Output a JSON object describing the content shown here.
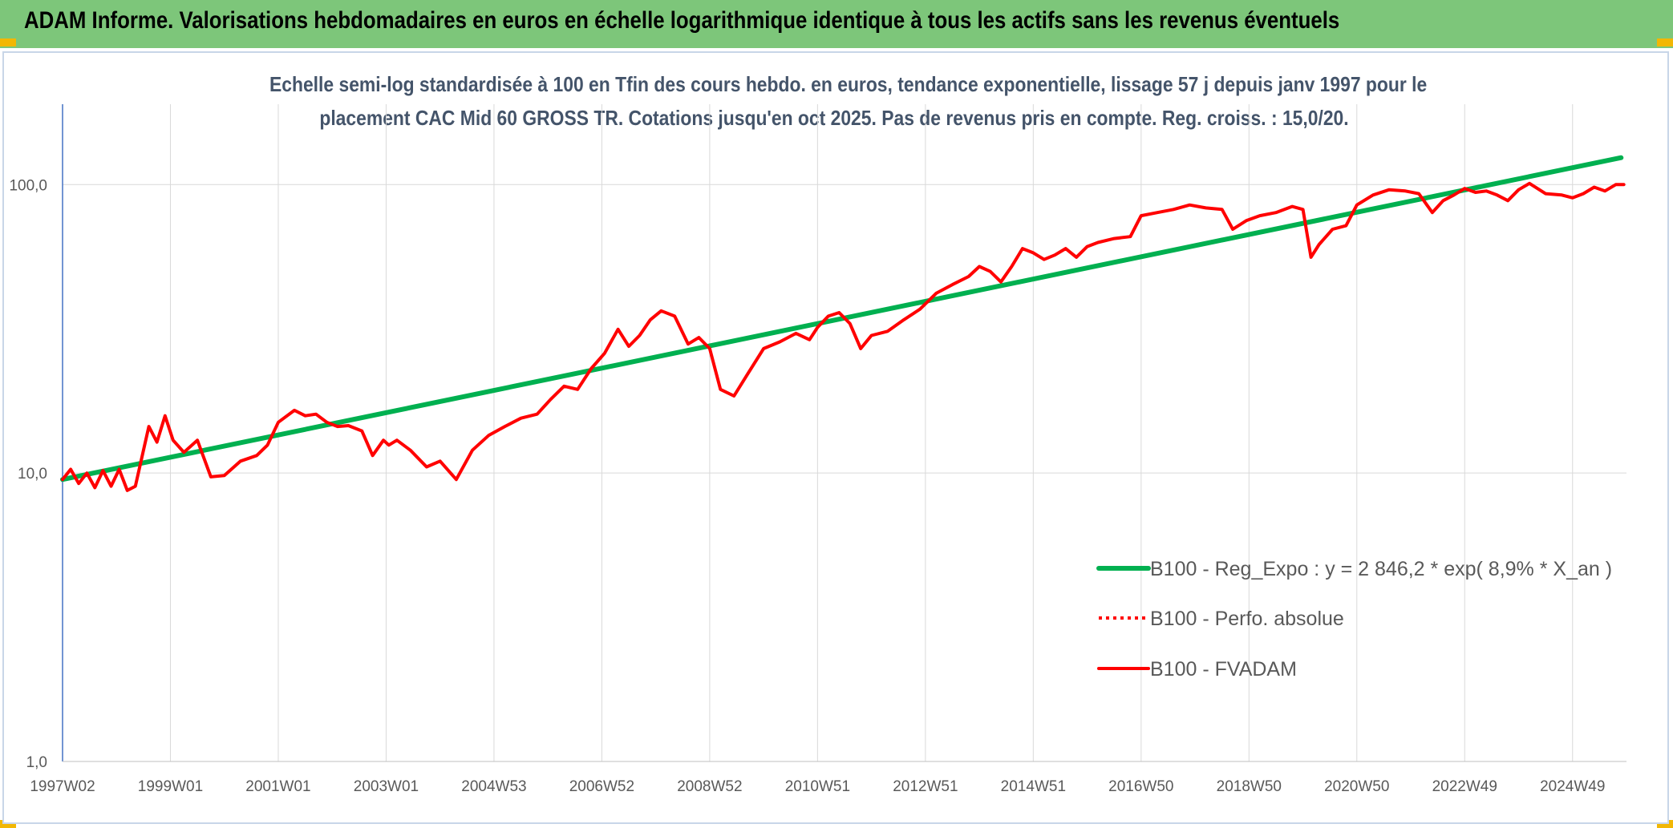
{
  "page": {
    "banner_title": "ADAM Informe. Valorisations hebdomadaires en euros en échelle logarithmique identique à tous les actifs sans les revenus éventuels",
    "subtitle_line1": "Echelle semi-log standardisée à 100 en Tfin des cours hebdo. en euros, tendance exponentielle, lissage 57 j depuis janv 1997 pour le",
    "subtitle_line2": "placement CAC Mid 60 GROSS TR. Cotations jusqu'en oct 2025. Pas de revenus pris en compte. Reg. croiss. : 15,0/20."
  },
  "colors": {
    "banner": "#7dc67a",
    "trend": "#00b050",
    "fvadam": "#ff0000",
    "perf": "#ff0000",
    "axis_text": "#595959",
    "grid": "#d9d9d9",
    "corner": "#f2b705"
  },
  "chart_data": {
    "type": "line",
    "y_scale": "log",
    "ylim": [
      1,
      190
    ],
    "xlim": [
      1997.0,
      2026.0
    ],
    "grid": true,
    "legend_position": "right",
    "y_ticks": [
      {
        "value": 1,
        "label": "1,0"
      },
      {
        "value": 10,
        "label": "10,0"
      },
      {
        "value": 100,
        "label": "100,0"
      }
    ],
    "x_ticks": [
      {
        "value": 1997.0,
        "label": "1997W02"
      },
      {
        "value": 1999.0,
        "label": "1999W01"
      },
      {
        "value": 2001.0,
        "label": "2001W01"
      },
      {
        "value": 2003.0,
        "label": "2003W01"
      },
      {
        "value": 2005.0,
        "label": "2004W53"
      },
      {
        "value": 2007.0,
        "label": "2006W52"
      },
      {
        "value": 2009.0,
        "label": "2008W52"
      },
      {
        "value": 2011.0,
        "label": "2010W51"
      },
      {
        "value": 2013.0,
        "label": "2012W51"
      },
      {
        "value": 2015.0,
        "label": "2014W51"
      },
      {
        "value": 2017.0,
        "label": "2016W50"
      },
      {
        "value": 2019.0,
        "label": "2018W50"
      },
      {
        "value": 2021.0,
        "label": "2020W50"
      },
      {
        "value": 2023.0,
        "label": "2022W49"
      },
      {
        "value": 2025.0,
        "label": "2024W49"
      }
    ],
    "series": [
      {
        "name": "B100 - Reg_Expo : y = 2 846,2 * exp( 8,9% *  X_an )",
        "style": "solid-thick",
        "x": [
          1997.0,
          2025.9
        ],
        "y": [
          9.5,
          124.0
        ]
      },
      {
        "name": "B100 - Perfo. absolue",
        "style": "dotted",
        "x": [],
        "y": []
      },
      {
        "name": "B100 - FVADAM",
        "style": "solid",
        "x": [
          1997.0,
          1997.15,
          1997.3,
          1997.45,
          1997.6,
          1997.75,
          1997.9,
          1998.05,
          1998.2,
          1998.35,
          1998.5,
          1998.6,
          1998.75,
          1998.9,
          1999.05,
          1999.25,
          1999.5,
          1999.75,
          2000.0,
          2000.3,
          2000.6,
          2000.8,
          2001.0,
          2001.3,
          2001.5,
          2001.7,
          2001.9,
          2002.1,
          2002.3,
          2002.55,
          2002.75,
          2002.95,
          2003.05,
          2003.2,
          2003.45,
          2003.75,
          2004.0,
          2004.3,
          2004.6,
          2004.9,
          2005.2,
          2005.5,
          2005.8,
          2006.05,
          2006.3,
          2006.55,
          2006.8,
          2007.05,
          2007.3,
          2007.5,
          2007.7,
          2007.9,
          2008.1,
          2008.35,
          2008.6,
          2008.8,
          2009.0,
          2009.2,
          2009.45,
          2009.7,
          2010.0,
          2010.3,
          2010.6,
          2010.85,
          2011.0,
          2011.2,
          2011.4,
          2011.6,
          2011.8,
          2012.0,
          2012.3,
          2012.6,
          2012.9,
          2013.2,
          2013.5,
          2013.8,
          2014.0,
          2014.2,
          2014.4,
          2014.6,
          2014.8,
          2015.0,
          2015.2,
          2015.4,
          2015.6,
          2015.8,
          2016.0,
          2016.2,
          2016.5,
          2016.8,
          2017.0,
          2017.3,
          2017.6,
          2017.9,
          2018.2,
          2018.5,
          2018.7,
          2018.95,
          2019.2,
          2019.5,
          2019.8,
          2020.0,
          2020.15,
          2020.3,
          2020.55,
          2020.8,
          2021.0,
          2021.3,
          2021.6,
          2021.9,
          2022.15,
          2022.4,
          2022.6,
          2022.8,
          2023.0,
          2023.2,
          2023.4,
          2023.6,
          2023.8,
          2024.0,
          2024.2,
          2024.5,
          2024.8,
          2025.0,
          2025.2,
          2025.4,
          2025.6,
          2025.8,
          2025.95
        ],
        "y": [
          9.5,
          10.3,
          9.2,
          10.0,
          8.9,
          10.2,
          9.0,
          10.3,
          8.7,
          9.0,
          12.0,
          14.5,
          12.8,
          15.8,
          13.0,
          11.8,
          13.0,
          9.7,
          9.8,
          11.0,
          11.5,
          12.5,
          15.0,
          16.5,
          15.8,
          16.0,
          15.0,
          14.5,
          14.6,
          14.0,
          11.5,
          13.0,
          12.5,
          13.0,
          12.0,
          10.5,
          11.0,
          9.5,
          12.0,
          13.5,
          14.5,
          15.5,
          16.0,
          18.0,
          20.0,
          19.5,
          23.0,
          26.0,
          31.5,
          27.5,
          30.0,
          34.0,
          36.5,
          35.0,
          28.0,
          29.5,
          27.0,
          19.5,
          18.5,
          22.0,
          27.0,
          28.5,
          30.5,
          29.0,
          32.0,
          35.0,
          36.0,
          33.0,
          27.0,
          30.0,
          31.0,
          34.0,
          37.0,
          42.0,
          45.0,
          48.0,
          52.0,
          50.0,
          46.0,
          52.0,
          60.0,
          58.0,
          55.0,
          57.0,
          60.0,
          56.0,
          61.0,
          63.0,
          65.0,
          66.0,
          78.0,
          80.0,
          82.0,
          85.0,
          83.0,
          82.0,
          70.0,
          75.0,
          78.0,
          80.0,
          84.0,
          82.0,
          56.0,
          62.0,
          70.0,
          72.0,
          85.0,
          92.0,
          96.0,
          95.0,
          93.0,
          80.0,
          88.0,
          92.0,
          97.0,
          94.0,
          95.0,
          92.0,
          88.0,
          96.0,
          101.0,
          93.0,
          92.0,
          90.0,
          93.0,
          98.0,
          95.0,
          100.0,
          100.0
        ]
      }
    ]
  }
}
